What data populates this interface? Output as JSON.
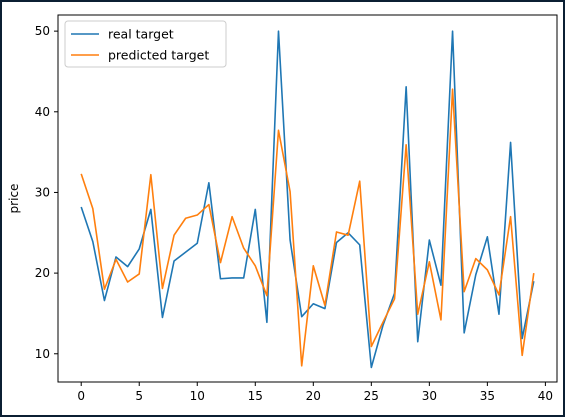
{
  "chart_data": {
    "type": "line",
    "title": "",
    "xlabel": "",
    "ylabel": "price",
    "xlim": [
      -2,
      41
    ],
    "ylim": [
      6.5,
      52
    ],
    "xticks": [
      0,
      5,
      10,
      15,
      20,
      25,
      30,
      35,
      40
    ],
    "yticks": [
      10,
      20,
      30,
      40,
      50
    ],
    "grid": false,
    "legend_position": "upper-left",
    "x": [
      0,
      1,
      2,
      3,
      4,
      5,
      6,
      7,
      8,
      9,
      10,
      11,
      12,
      13,
      14,
      15,
      16,
      17,
      18,
      19,
      20,
      21,
      22,
      23,
      24,
      25,
      26,
      27,
      28,
      29,
      30,
      31,
      32,
      33,
      34,
      35,
      36,
      37,
      38,
      39
    ],
    "series": [
      {
        "name": "real target",
        "color": "#1f77b4",
        "values": [
          28.2,
          23.9,
          16.6,
          22.0,
          20.8,
          23.0,
          27.9,
          14.5,
          21.5,
          22.6,
          23.7,
          31.2,
          19.3,
          19.4,
          19.4,
          27.9,
          13.9,
          50.0,
          24.1,
          14.6,
          16.2,
          15.6,
          23.8,
          25.0,
          23.5,
          8.3,
          13.5,
          17.5,
          43.1,
          11.5,
          24.1,
          18.5,
          50.0,
          12.6,
          19.8,
          24.5,
          14.9,
          36.2,
          11.9,
          19.0
        ]
      },
      {
        "name": "predicted target",
        "color": "#ff7f0e",
        "values": [
          32.3,
          28.0,
          18.0,
          21.7,
          18.9,
          19.9,
          32.2,
          18.1,
          24.7,
          26.8,
          27.2,
          28.5,
          21.3,
          27.0,
          23.1,
          20.9,
          17.2,
          37.7,
          30.1,
          8.5,
          20.9,
          16.0,
          25.1,
          24.7,
          31.4,
          10.9,
          13.9,
          16.8,
          35.9,
          14.9,
          21.4,
          14.2,
          42.8,
          17.7,
          21.8,
          20.4,
          17.3,
          27.0,
          9.8,
          20.0
        ]
      }
    ]
  }
}
